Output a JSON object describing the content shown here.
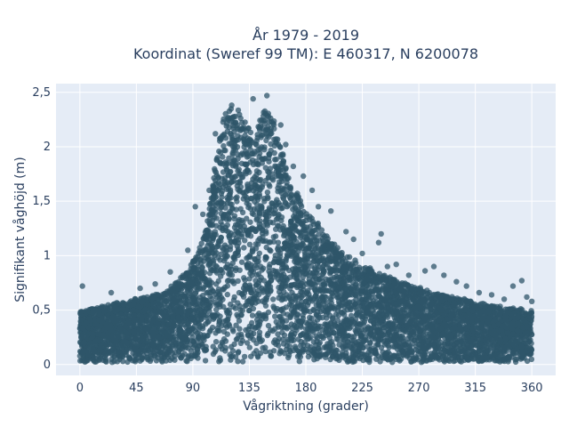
{
  "chart_data": {
    "type": "scatter",
    "title_line1": "År 1979 - 2019",
    "title_line2": "Koordinat (Sweref 99 TM): E 460317, N 6200078",
    "xlabel": "Vågriktning (grader)",
    "ylabel": "Signifikant våghöjd (m)",
    "xlim": [
      -19,
      379
    ],
    "ylim": [
      -0.1,
      2.58
    ],
    "x_ticks": [
      {
        "value": 0,
        "label": "0"
      },
      {
        "value": 45,
        "label": "45"
      },
      {
        "value": 90,
        "label": "90"
      },
      {
        "value": 135,
        "label": "135"
      },
      {
        "value": 180,
        "label": "180"
      },
      {
        "value": 225,
        "label": "225"
      },
      {
        "value": 270,
        "label": "270"
      },
      {
        "value": 315,
        "label": "315"
      },
      {
        "value": 360,
        "label": "360"
      }
    ],
    "y_ticks": [
      {
        "value": 0,
        "label": "0"
      },
      {
        "value": 0.5,
        "label": "0,5"
      },
      {
        "value": 1,
        "label": "1"
      },
      {
        "value": 1.5,
        "label": "1,5"
      },
      {
        "value": 2,
        "label": "2"
      },
      {
        "value": 2.5,
        "label": "2,5"
      }
    ],
    "grid": true,
    "marker_color": "#2f5569",
    "plot_background": "#e5ecf6",
    "series": [
      {
        "upper_envelope": {
          "x": [
            0,
            20,
            40,
            60,
            70,
            80,
            90,
            100,
            105,
            110,
            115,
            120,
            125,
            130,
            135,
            140,
            145,
            150,
            155,
            160,
            165,
            170,
            180,
            190,
            200,
            210,
            225,
            240,
            255,
            270,
            285,
            300,
            315,
            330,
            345,
            360
          ],
          "y": [
            0.5,
            0.55,
            0.6,
            0.65,
            0.7,
            0.8,
            0.95,
            1.25,
            1.6,
            2.05,
            2.35,
            2.4,
            2.42,
            2.3,
            2.2,
            2.15,
            2.35,
            2.4,
            2.3,
            2.05,
            1.8,
            1.65,
            1.45,
            1.3,
            1.15,
            1.05,
            0.92,
            0.85,
            0.78,
            0.72,
            0.66,
            0.62,
            0.58,
            0.55,
            0.52,
            0.5
          ]
        },
        "lower_bound": 0.02,
        "outliers": [
          {
            "x": 2,
            "y": 0.72
          },
          {
            "x": 25,
            "y": 0.66
          },
          {
            "x": 48,
            "y": 0.7
          },
          {
            "x": 60,
            "y": 0.74
          },
          {
            "x": 72,
            "y": 0.85
          },
          {
            "x": 86,
            "y": 1.05
          },
          {
            "x": 92,
            "y": 1.45
          },
          {
            "x": 98,
            "y": 1.38
          },
          {
            "x": 103,
            "y": 1.6
          },
          {
            "x": 108,
            "y": 2.12
          },
          {
            "x": 138,
            "y": 2.44
          },
          {
            "x": 149,
            "y": 2.47
          },
          {
            "x": 160,
            "y": 2.2
          },
          {
            "x": 164,
            "y": 2.02
          },
          {
            "x": 170,
            "y": 1.82
          },
          {
            "x": 178,
            "y": 1.73
          },
          {
            "x": 185,
            "y": 1.6
          },
          {
            "x": 190,
            "y": 1.45
          },
          {
            "x": 200,
            "y": 1.41
          },
          {
            "x": 212,
            "y": 1.22
          },
          {
            "x": 218,
            "y": 1.15
          },
          {
            "x": 225,
            "y": 1.02
          },
          {
            "x": 238,
            "y": 1.12
          },
          {
            "x": 240,
            "y": 1.2
          },
          {
            "x": 245,
            "y": 0.9
          },
          {
            "x": 252,
            "y": 0.92
          },
          {
            "x": 262,
            "y": 0.82
          },
          {
            "x": 275,
            "y": 0.86
          },
          {
            "x": 282,
            "y": 0.9
          },
          {
            "x": 290,
            "y": 0.82
          },
          {
            "x": 300,
            "y": 0.76
          },
          {
            "x": 308,
            "y": 0.72
          },
          {
            "x": 318,
            "y": 0.66
          },
          {
            "x": 328,
            "y": 0.64
          },
          {
            "x": 338,
            "y": 0.6
          },
          {
            "x": 345,
            "y": 0.72
          },
          {
            "x": 352,
            "y": 0.77
          },
          {
            "x": 356,
            "y": 0.62
          },
          {
            "x": 360,
            "y": 0.58
          }
        ]
      }
    ]
  }
}
